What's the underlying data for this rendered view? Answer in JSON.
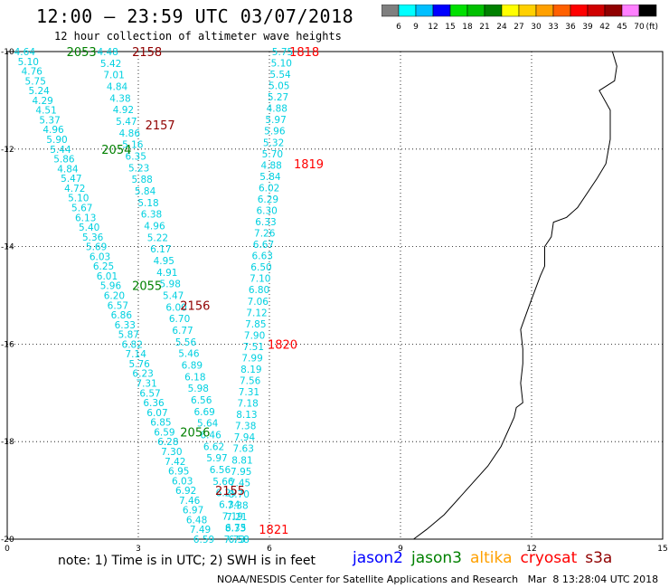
{
  "header": {
    "title": "12:00 – 23:59 UTC 03/07/2018",
    "subtitle": "12 hour collection of altimeter wave heights"
  },
  "legend": {
    "unit": "(ft)",
    "levels": [
      "3",
      "6",
      "9",
      "12",
      "15",
      "18",
      "21",
      "24",
      "27",
      "30",
      "33",
      "36",
      "39",
      "42",
      "45",
      "70"
    ],
    "colors": [
      "#7f7f7f",
      "#00ffff",
      "#00bfff",
      "#0000ff",
      "#00e000",
      "#00c000",
      "#008000",
      "#ffff00",
      "#ffd000",
      "#ffa000",
      "#ff6000",
      "#ff0000",
      "#d00000",
      "#900000",
      "#ff80ff",
      "#000000"
    ]
  },
  "axes": {
    "x_ticks": [
      "0",
      "3",
      "6",
      "9",
      "12",
      "15"
    ],
    "y_ticks": [
      "-10",
      "-12",
      "-14",
      "-16",
      "-18",
      "-20"
    ]
  },
  "satellites": [
    {
      "name": "jason2",
      "color": "#0000ff"
    },
    {
      "name": "jason3",
      "color": "#008000"
    },
    {
      "name": "altika",
      "color": "#ffa000"
    },
    {
      "name": "cryosat",
      "color": "#ff0000"
    },
    {
      "name": "s3a",
      "color": "#900000"
    }
  ],
  "footer": {
    "note": "note: 1) Time is in UTC; 2) SWH is in feet",
    "credit": "NOAA/NESDIS Center for Satellite Applications and Research   Mar  8 13:28:04 UTC 2018"
  },
  "pass_labels": [
    {
      "text": "2053",
      "color": "#008000",
      "lon": 1.7,
      "lat": -10.0
    },
    {
      "text": "2158",
      "color": "#900000",
      "lon": 3.2,
      "lat": -10.0
    },
    {
      "text": "1818",
      "color": "#ff0000",
      "lon": 6.8,
      "lat": -10.0
    },
    {
      "text": "2157",
      "color": "#900000",
      "lon": 3.5,
      "lat": -11.5
    },
    {
      "text": "2054",
      "color": "#008000",
      "lon": 2.5,
      "lat": -12.0
    },
    {
      "text": "1819",
      "color": "#ff0000",
      "lon": 6.9,
      "lat": -12.3
    },
    {
      "text": "2055",
      "color": "#008000",
      "lon": 3.2,
      "lat": -14.8
    },
    {
      "text": "2156",
      "color": "#900000",
      "lon": 4.3,
      "lat": -15.2
    },
    {
      "text": "1820",
      "color": "#ff0000",
      "lon": 6.3,
      "lat": -16.0
    },
    {
      "text": "2056",
      "color": "#008000",
      "lon": 4.3,
      "lat": -17.8
    },
    {
      "text": "2155",
      "color": "#900000",
      "lon": 5.1,
      "lat": -19.0
    },
    {
      "text": "1821",
      "color": "#ff0000",
      "lon": 6.1,
      "lat": -19.8
    }
  ],
  "tracks": [
    {
      "name": "jason3-track",
      "color": "#00d0e0",
      "lon_start": 0.4,
      "lat_start": -10.0,
      "lon_end": 4.5,
      "lat_end": -20.0,
      "values": [
        "4.64",
        "5.10",
        "4.76",
        "5.75",
        "5.24",
        "4.29",
        "4.51",
        "5.37",
        "4.96",
        "5.90",
        "5.44",
        "5.86",
        "4.84",
        "5.47",
        "4.72",
        "5.10",
        "5.67",
        "6.13",
        "5.40",
        "5.36",
        "5.69",
        "6.03",
        "6.25",
        "6.01",
        "5.96",
        "6.20",
        "6.57",
        "6.86",
        "6.33",
        "5.87",
        "6.82",
        "7.14",
        "5.76",
        "6.23",
        "7.31",
        "6.57",
        "6.36",
        "6.07",
        "6.85",
        "6.59",
        "6.28",
        "7.30",
        "7.42",
        "6.95",
        "6.03",
        "6.92",
        "7.46",
        "6.97",
        "6.48",
        "7.49",
        "6.59"
      ]
    },
    {
      "name": "s3a-track",
      "color": "#00d0e0",
      "lon_start": 2.3,
      "lat_start": -10.0,
      "lon_end": 5.3,
      "lat_end": -20.0,
      "values": [
        "4.48",
        "5.42",
        "7.01",
        "4.84",
        "4.38",
        "4.92",
        "5.47",
        "4.86",
        "5.16",
        "6.35",
        "5.23",
        "5.88",
        "5.84",
        "5.18",
        "6.38",
        "4.96",
        "5.22",
        "6.17",
        "4.95",
        "4.91",
        "5.98",
        "5.47",
        "6.00",
        "6.70",
        "6.77",
        "5.56",
        "5.46",
        "6.89",
        "6.18",
        "5.98",
        "6.56",
        "6.69",
        "5.64",
        "6.46",
        "6.62",
        "5.97",
        "6.56",
        "5.66",
        "6.29",
        "6.34",
        "7.19",
        "6.75",
        "6.58"
      ]
    },
    {
      "name": "cryosat-track",
      "color": "#00d0e0",
      "lon_start": 6.3,
      "lat_start": -10.0,
      "lon_end": 5.2,
      "lat_end": -20.0,
      "values": [
        "5.75",
        "5.10",
        "5.54",
        "5.05",
        "5.27",
        "4.88",
        "5.97",
        "5.96",
        "5.32",
        "5.70",
        "4.88",
        "5.84",
        "6.02",
        "6.29",
        "6.30",
        "6.33",
        "7.26",
        "6.67",
        "6.63",
        "6.50",
        "7.10",
        "6.80",
        "7.06",
        "7.12",
        "7.85",
        "7.90",
        "7.51",
        "7.99",
        "8.19",
        "7.56",
        "7.31",
        "7.18",
        "8.13",
        "7.38",
        "7.94",
        "7.63",
        "8.81",
        "7.95",
        "7.45",
        "8.70",
        "7.38",
        "7.21",
        "8.33",
        "7.73"
      ]
    }
  ],
  "coastline": [
    [
      13.85,
      -10.0
    ],
    [
      13.95,
      -10.3
    ],
    [
      13.9,
      -10.6
    ],
    [
      13.55,
      -10.8
    ],
    [
      13.8,
      -11.2
    ],
    [
      13.8,
      -11.8
    ],
    [
      13.7,
      -12.3
    ],
    [
      13.5,
      -12.6
    ],
    [
      13.05,
      -13.2
    ],
    [
      12.8,
      -13.4
    ],
    [
      12.5,
      -13.5
    ],
    [
      12.45,
      -13.8
    ],
    [
      12.3,
      -14.0
    ],
    [
      12.3,
      -14.4
    ],
    [
      12.2,
      -14.6
    ],
    [
      11.95,
      -15.2
    ],
    [
      11.75,
      -15.7
    ],
    [
      11.8,
      -16.1
    ],
    [
      11.8,
      -16.4
    ],
    [
      11.75,
      -16.8
    ],
    [
      11.8,
      -17.2
    ],
    [
      11.65,
      -17.3
    ],
    [
      11.6,
      -17.5
    ],
    [
      11.3,
      -18.1
    ],
    [
      11.0,
      -18.5
    ],
    [
      10.5,
      -19.0
    ],
    [
      10.0,
      -19.5
    ],
    [
      9.6,
      -19.8
    ],
    [
      9.3,
      -20.0
    ]
  ]
}
